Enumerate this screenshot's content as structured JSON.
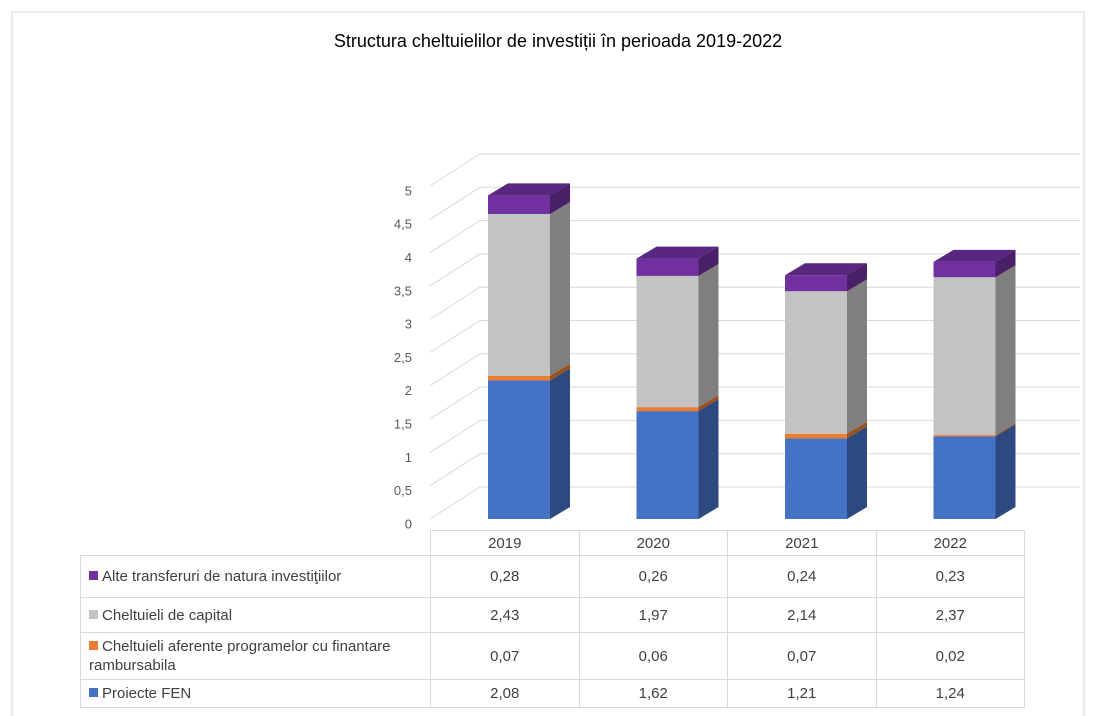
{
  "chart_data": {
    "type": "bar3d_stacked",
    "title": "Structura cheltuielilor de investiții în perioada 2019-2022",
    "categories": [
      "2019",
      "2020",
      "2021",
      "2022"
    ],
    "series": [
      {
        "name": "Proiecte FEN",
        "color": "#4472c4",
        "values": [
          2.08,
          1.62,
          1.21,
          1.24
        ],
        "value_labels": [
          "2,08",
          "1,62",
          "1,21",
          "1,24"
        ]
      },
      {
        "name": "Cheltuieli aferente programelor cu finantare rambursabila",
        "color": "#ed7d31",
        "values": [
          0.07,
          0.06,
          0.07,
          0.02
        ],
        "value_labels": [
          "0,07",
          "0,06",
          "0,07",
          "0,02"
        ]
      },
      {
        "name": "Cheltuieli de capital",
        "color": "#c3c3c3",
        "values": [
          2.43,
          1.97,
          2.14,
          2.37
        ],
        "value_labels": [
          "2,43",
          "1,97",
          "2,14",
          "2,37"
        ]
      },
      {
        "name": "Alte transferuri de natura investiţiilor",
        "color": "#7030a0",
        "values": [
          0.28,
          0.26,
          0.24,
          0.23
        ],
        "value_labels": [
          "0,28",
          "0,26",
          "0,24",
          "0,23"
        ]
      }
    ],
    "ylim": [
      0,
      5
    ],
    "yticks": [
      0,
      {
        "value": 0.5,
        "label": "0,5"
      },
      1,
      {
        "value": 1.5,
        "label": "1,5"
      },
      2,
      {
        "value": 2.5,
        "label": "2,5"
      },
      3,
      {
        "value": 3.5,
        "label": "3,5"
      },
      4,
      {
        "value": 4.5,
        "label": "4,5"
      },
      5
    ],
    "grid": true,
    "data_table": true
  }
}
